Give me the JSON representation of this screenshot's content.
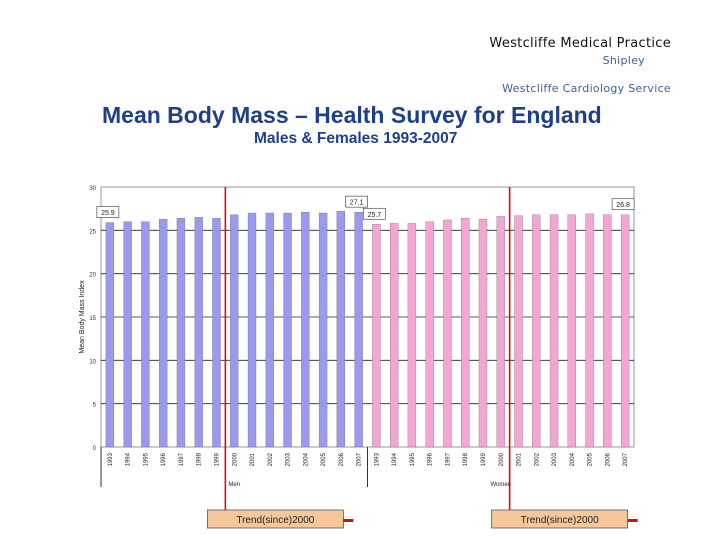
{
  "header": {
    "practice": "Westcliffe Medical Practice",
    "location": "Shipley",
    "service": "Westcliffe Cardiology Service"
  },
  "chart_data": {
    "type": "bar",
    "title": "Mean Body Mass – Health Survey for England",
    "subtitle": "Males & Females 1993-2007",
    "ylabel": "Mean Body Mass Index",
    "ylim": [
      0,
      30
    ],
    "yticks": [
      "0",
      "5",
      "10",
      "15",
      "20",
      "25",
      "30"
    ],
    "groups": [
      "Men",
      "Women"
    ],
    "colors": {
      "Men": "#9999ee",
      "Women": "#f4a6d2",
      "trend": "#cc1111",
      "trend_box": "#f5c79a"
    },
    "series": [
      {
        "name": "Men",
        "categories": [
          "1993",
          "1994",
          "1995",
          "1996",
          "1997",
          "1998",
          "1999",
          "2000",
          "2001",
          "2002",
          "2003",
          "2004",
          "2005",
          "2006",
          "2007"
        ],
        "values": [
          25.9,
          26.0,
          26.0,
          26.3,
          26.4,
          26.5,
          26.4,
          26.8,
          27.0,
          27.0,
          27.0,
          27.1,
          27.0,
          27.2,
          27.1
        ]
      },
      {
        "name": "Women",
        "categories": [
          "1993",
          "1994",
          "1995",
          "1996",
          "1997",
          "1998",
          "1999",
          "2000",
          "2001",
          "2002",
          "2003",
          "2004",
          "2005",
          "2006",
          "2007"
        ],
        "values": [
          25.7,
          25.8,
          25.8,
          26.0,
          26.2,
          26.4,
          26.3,
          26.6,
          26.7,
          26.8,
          26.8,
          26.8,
          26.9,
          26.8,
          26.8
        ]
      }
    ],
    "annotations": [
      {
        "text": "25.9",
        "series": "Men",
        "index": 0
      },
      {
        "text": "27.1",
        "series": "Men",
        "index": 14
      },
      {
        "text": "25.7",
        "series": "Women",
        "index": 0
      },
      {
        "text": "26.8",
        "series": "Women",
        "index": 14
      }
    ],
    "trend_markers": [
      {
        "label": "Trend(since)2000",
        "series": "Men",
        "index": 7
      },
      {
        "label": "Trend(since)2000",
        "series": "Women",
        "index": 8
      }
    ]
  }
}
